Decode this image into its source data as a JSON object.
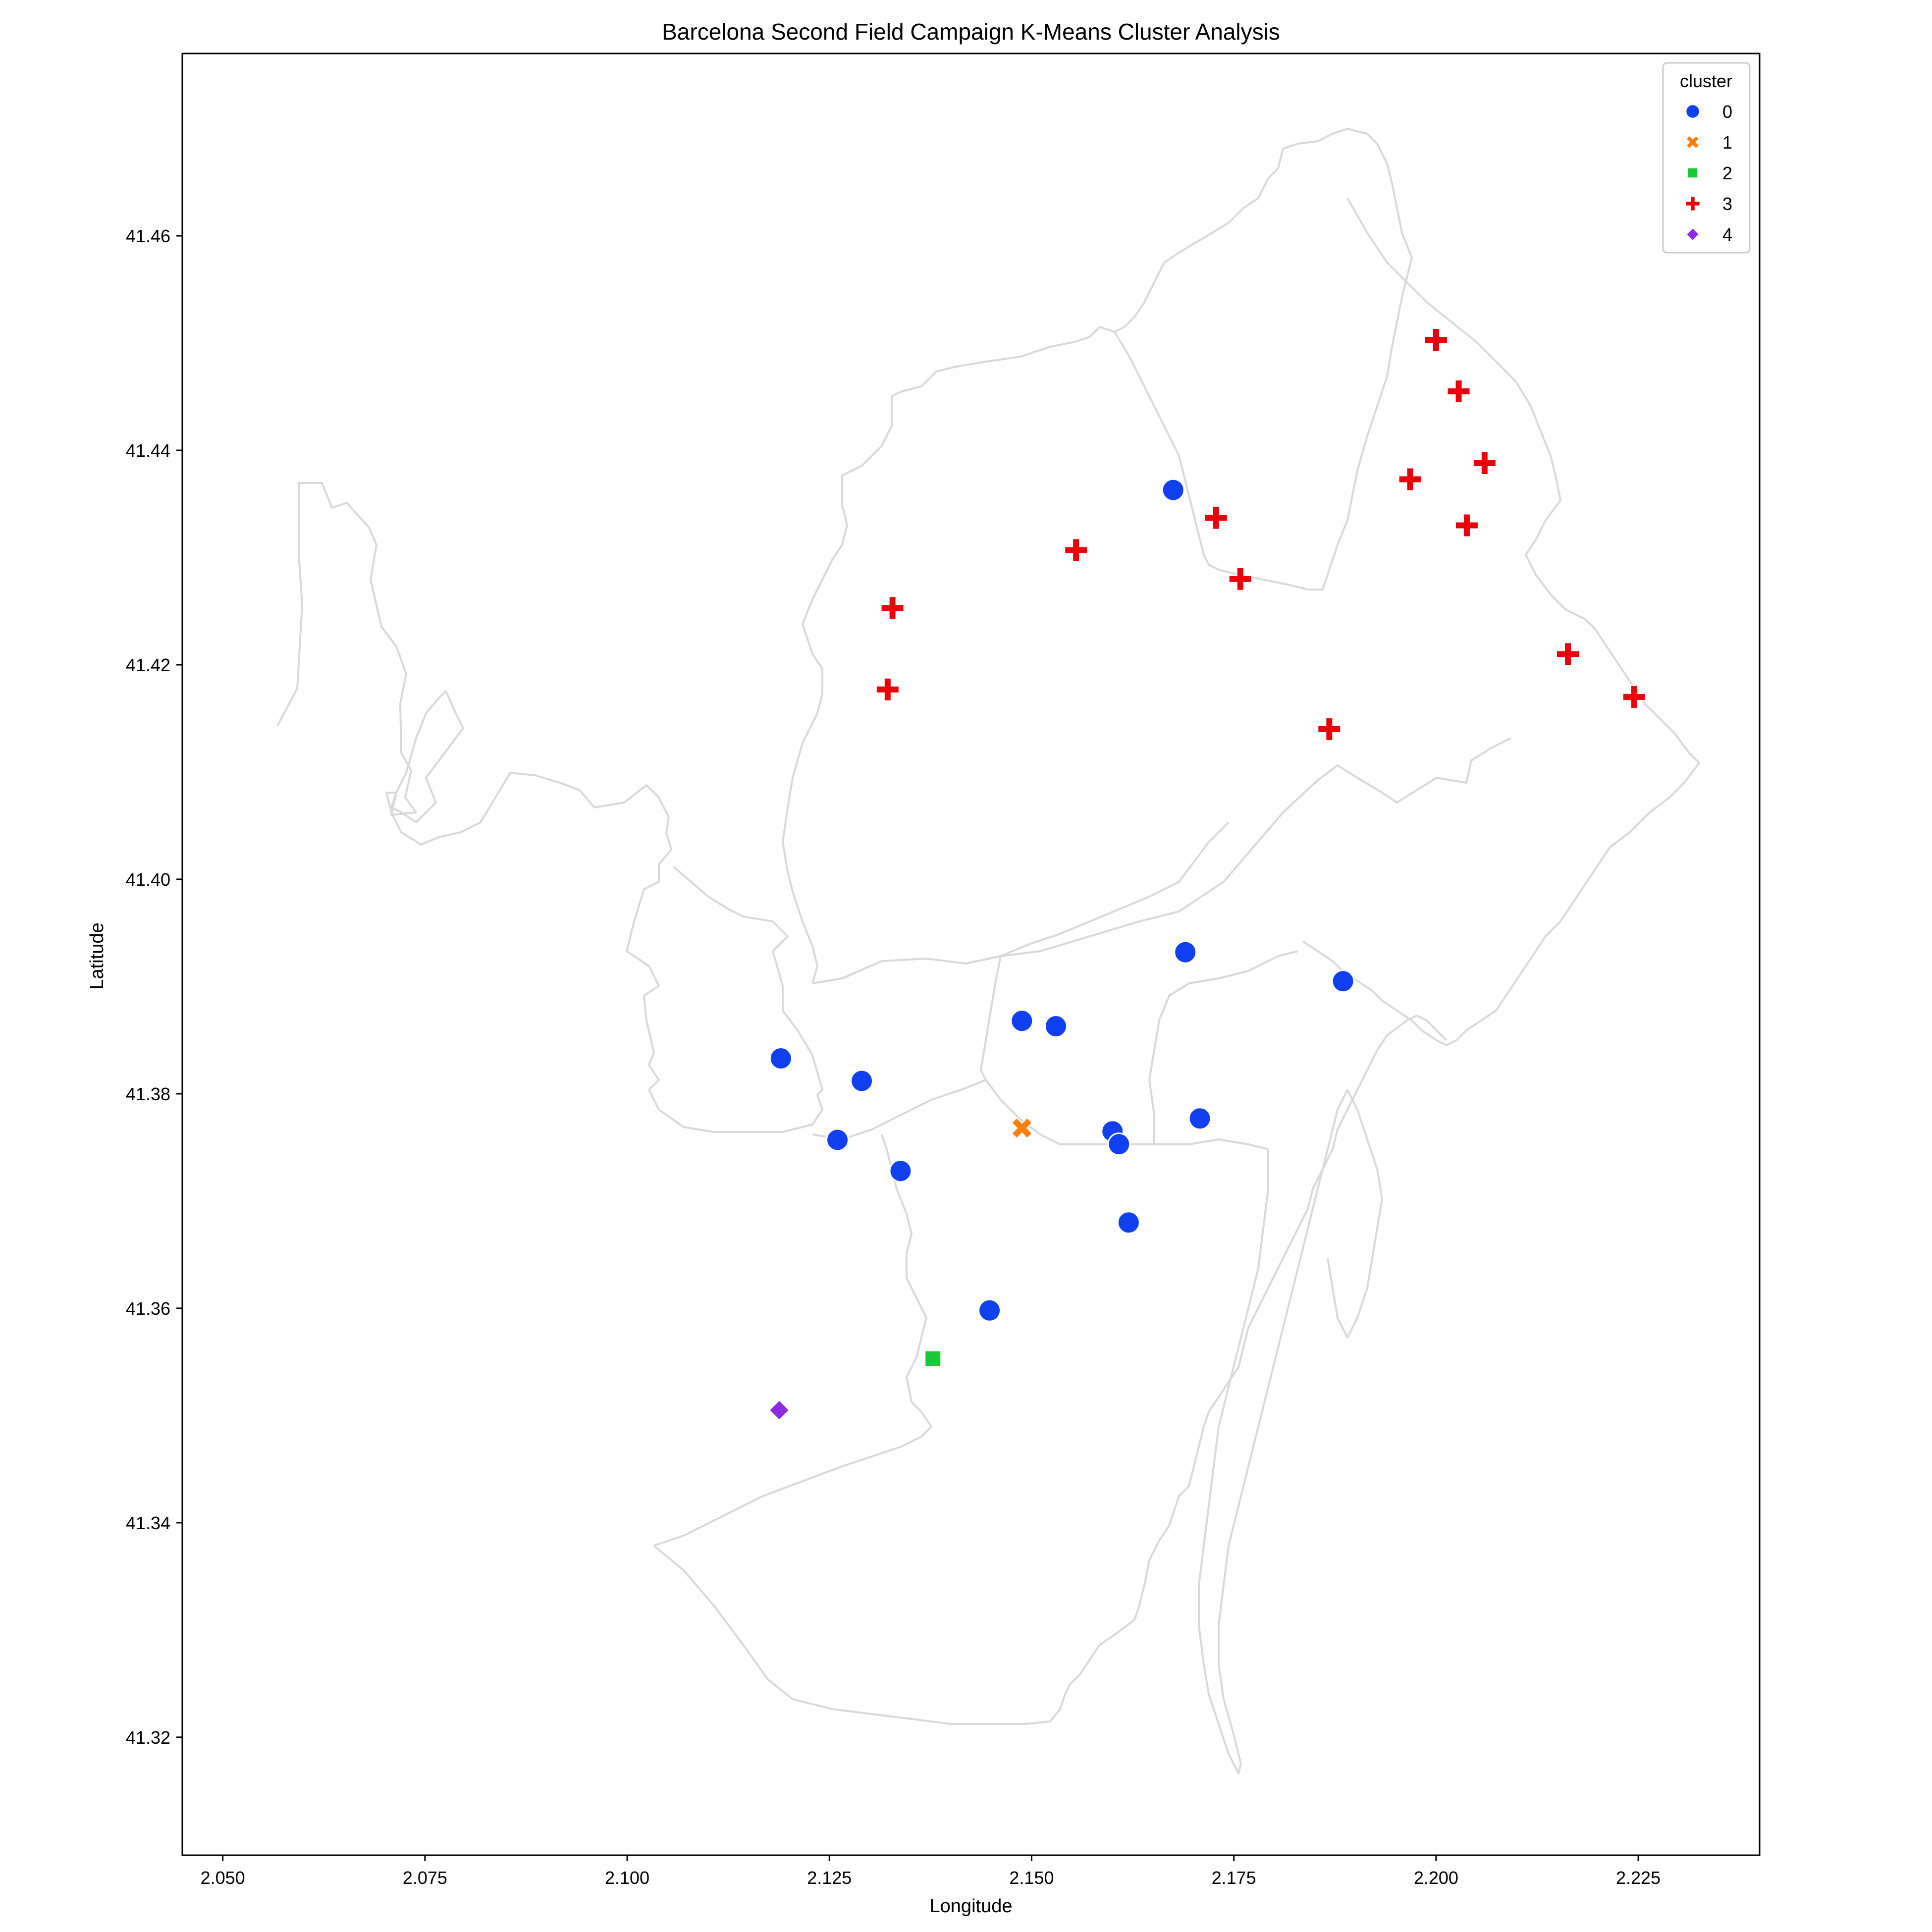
{
  "chart_data": {
    "type": "scatter",
    "title": "Barcelona Second Field Campaign K-Means Cluster Analysis",
    "xlabel": "Longitude",
    "ylabel": "Latitude",
    "xlim": [
      2.045,
      2.24
    ],
    "ylim": [
      41.309,
      41.477
    ],
    "xticks": [
      2.05,
      2.075,
      2.1,
      2.125,
      2.15,
      2.175,
      2.2,
      2.225
    ],
    "xtick_labels": [
      "2.050",
      "2.075",
      "2.100",
      "2.125",
      "2.150",
      "2.175",
      "2.200",
      "2.225"
    ],
    "yticks": [
      41.32,
      41.34,
      41.36,
      41.38,
      41.4,
      41.42,
      41.44,
      41.46
    ],
    "ytick_labels": [
      "41.32",
      "41.34",
      "41.36",
      "41.38",
      "41.40",
      "41.42",
      "41.44",
      "41.46"
    ],
    "grid": false,
    "legend": {
      "title": "cluster",
      "placement": "top-right"
    },
    "series": [
      {
        "name": "0",
        "marker": "circle",
        "color": "#1040f0",
        "points": [
          [
            2.1675,
            41.4363
          ],
          [
            2.169,
            41.3932
          ],
          [
            2.1885,
            41.3905
          ],
          [
            2.1488,
            41.3868
          ],
          [
            2.153,
            41.3863
          ],
          [
            2.119,
            41.3833
          ],
          [
            2.129,
            41.3812
          ],
          [
            2.1708,
            41.3777
          ],
          [
            2.16,
            41.3765
          ],
          [
            2.1608,
            41.3753
          ],
          [
            2.126,
            41.3757
          ],
          [
            2.1338,
            41.3728
          ],
          [
            2.162,
            41.368
          ],
          [
            2.1448,
            41.3598
          ]
        ]
      },
      {
        "name": "1",
        "marker": "x",
        "color": "#ff7f0e",
        "points": [
          [
            2.1488,
            41.3768
          ]
        ]
      },
      {
        "name": "2",
        "marker": "square",
        "color": "#1ac938",
        "points": [
          [
            2.1378,
            41.3553
          ]
        ]
      },
      {
        "name": "3",
        "marker": "plus",
        "color": "#e8000b",
        "points": [
          [
            2.2,
            41.4503
          ],
          [
            2.2028,
            41.4455
          ],
          [
            2.206,
            41.4388
          ],
          [
            2.1968,
            41.4373
          ],
          [
            2.2038,
            41.433
          ],
          [
            2.1728,
            41.4337
          ],
          [
            2.1555,
            41.4307
          ],
          [
            2.1758,
            41.428
          ],
          [
            2.1328,
            41.4253
          ],
          [
            2.1322,
            41.4177
          ],
          [
            2.2163,
            41.421
          ],
          [
            2.2245,
            41.417
          ],
          [
            2.1868,
            41.414
          ]
        ]
      },
      {
        "name": "4",
        "marker": "diamond",
        "color": "#8b2be2",
        "points": [
          [
            2.1188,
            41.3505
          ]
        ]
      }
    ]
  }
}
